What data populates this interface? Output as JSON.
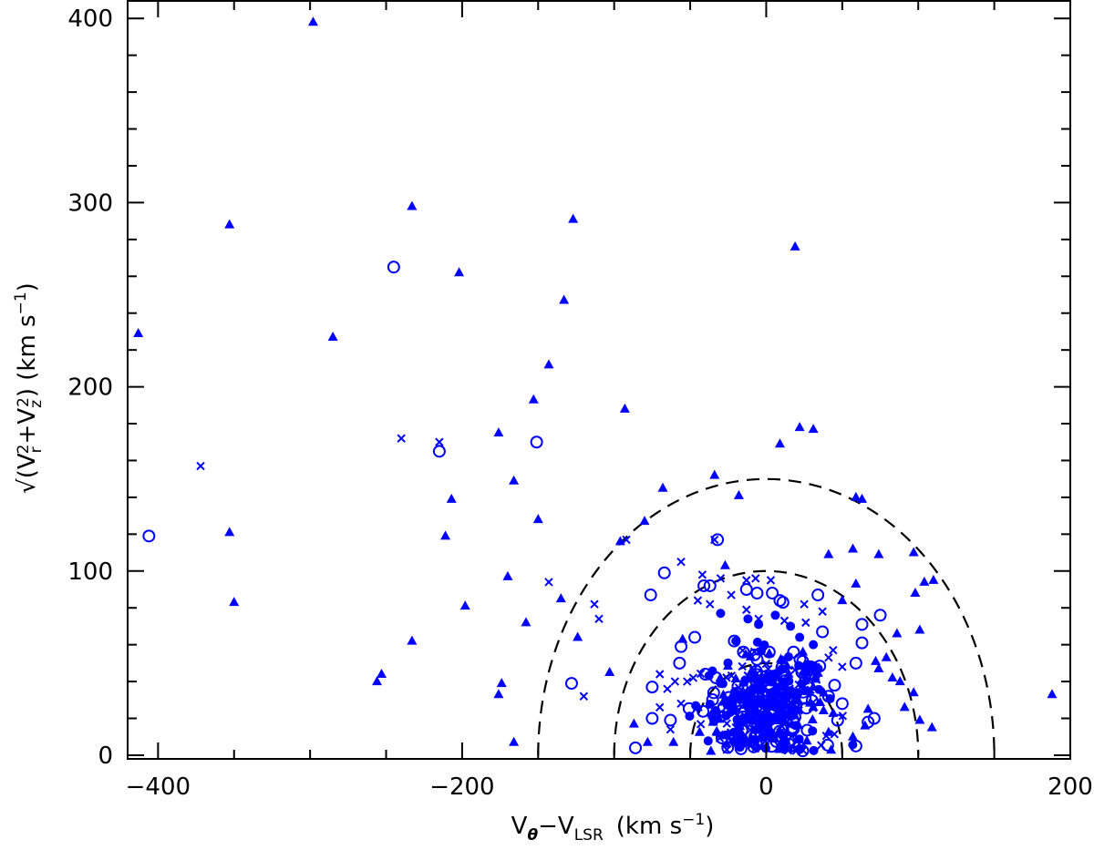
{
  "chart_data": {
    "type": "scatter",
    "title": "",
    "xlabel": {
      "main": "V",
      "sub_theta": "θ",
      "minus": "−V",
      "sub_lsr": "LSR",
      "unit": "(km s",
      "exp": "−1",
      "close": ")"
    },
    "ylabel": {
      "prefix": "√(V",
      "sub_r": "r",
      "sup2a": "2",
      "plus": "+V",
      "sub_z": "z",
      "sup2b": "2",
      "mid": ")  (km s",
      "exp": "−1",
      "close": ")"
    },
    "xlim": [
      -420,
      200
    ],
    "ylim": [
      -2,
      410
    ],
    "xticks": [
      -400,
      -200,
      0,
      200
    ],
    "yticks": [
      0,
      100,
      200,
      300,
      400
    ],
    "grid": false,
    "color": "#0000ff",
    "circle_radii_dashed": [
      50,
      100,
      150
    ],
    "series": [
      {
        "marker": "triangle",
        "points": [
          [
            -298,
            398
          ],
          [
            -413,
            229
          ],
          [
            -353,
            288
          ],
          [
            -233,
            298
          ],
          [
            -127,
            291
          ],
          [
            -285,
            227
          ],
          [
            -202,
            262
          ],
          [
            -133,
            247
          ],
          [
            19,
            276
          ],
          [
            -143,
            212
          ],
          [
            -153,
            193
          ],
          [
            -93,
            188
          ],
          [
            -176,
            175
          ],
          [
            -207,
            139
          ],
          [
            -211,
            119
          ],
          [
            -166,
            149
          ],
          [
            -150,
            128
          ],
          [
            -68,
            145
          ],
          [
            -18,
            141
          ],
          [
            -34,
            152
          ],
          [
            9,
            169
          ],
          [
            22,
            178
          ],
          [
            31,
            177
          ],
          [
            59,
            140
          ],
          [
            63,
            139
          ],
          [
            -353,
            121
          ],
          [
            -350,
            83
          ],
          [
            -170,
            97
          ],
          [
            -158,
            72
          ],
          [
            -124,
            64
          ],
          [
            -233,
            62
          ],
          [
            -198,
            81
          ],
          [
            -253,
            44
          ],
          [
            -256,
            40
          ],
          [
            -174,
            39
          ],
          [
            -176,
            33
          ],
          [
            -166,
            7
          ],
          [
            -80,
            127
          ],
          [
            -87,
            17
          ],
          [
            -78,
            7
          ],
          [
            -61,
            7
          ],
          [
            -103,
            45
          ],
          [
            -135,
            85
          ],
          [
            -96,
            116
          ],
          [
            -27,
            103
          ],
          [
            57,
            112
          ],
          [
            41,
            109
          ],
          [
            74,
            109
          ],
          [
            97,
            110
          ],
          [
            104,
            94
          ],
          [
            110,
            95
          ],
          [
            98,
            88
          ],
          [
            101,
            68
          ],
          [
            86,
            66
          ],
          [
            79,
            53
          ],
          [
            72,
            51
          ],
          [
            74,
            47
          ],
          [
            83,
            42
          ],
          [
            88,
            40
          ],
          [
            97,
            34
          ],
          [
            91,
            26
          ],
          [
            101,
            19
          ],
          [
            109,
            15
          ],
          [
            67,
            25
          ],
          [
            65,
            16
          ],
          [
            57,
            10
          ],
          [
            50,
            84
          ],
          [
            59,
            93
          ],
          [
            188,
            33
          ],
          [
            -55,
            63
          ],
          [
            -45,
            26
          ],
          [
            -35,
            18
          ]
        ]
      },
      {
        "marker": "circle-open",
        "points": [
          [
            -406,
            119
          ],
          [
            -245,
            265
          ],
          [
            -215,
            165
          ],
          [
            -151,
            170
          ],
          [
            -32,
            117
          ],
          [
            -67,
            99
          ],
          [
            -41,
            92
          ],
          [
            -37,
            92
          ],
          [
            -13,
            90
          ],
          [
            -6,
            88
          ],
          [
            4,
            88
          ],
          [
            9,
            84
          ],
          [
            11,
            83
          ],
          [
            34,
            87
          ],
          [
            63,
            71
          ],
          [
            75,
            76
          ],
          [
            63,
            61
          ],
          [
            59,
            50
          ],
          [
            37,
            67
          ],
          [
            -76,
            87
          ],
          [
            -128,
            39
          ],
          [
            -75,
            37
          ],
          [
            -56,
            59
          ],
          [
            -47,
            64
          ],
          [
            -57,
            50
          ],
          [
            -63,
            19
          ],
          [
            -75,
            20
          ],
          [
            -86,
            4
          ],
          [
            -40,
            44
          ],
          [
            -33,
            42
          ],
          [
            59,
            5
          ],
          [
            67,
            18
          ],
          [
            71,
            20
          ],
          [
            50,
            28
          ],
          [
            45,
            38
          ],
          [
            41,
            32
          ],
          [
            -15,
            56
          ],
          [
            -21,
            62
          ],
          [
            -6,
            52
          ],
          [
            2,
            56
          ],
          [
            18,
            56
          ],
          [
            24,
            51
          ],
          [
            29,
            48
          ]
        ]
      },
      {
        "marker": "cross",
        "points": [
          [
            -372,
            157
          ],
          [
            -240,
            172
          ],
          [
            -215,
            170
          ],
          [
            -143,
            94
          ],
          [
            -113,
            82
          ],
          [
            -110,
            74
          ],
          [
            -120,
            32
          ],
          [
            -92,
            117
          ],
          [
            -34,
            117
          ],
          [
            -56,
            105
          ],
          [
            -42,
            98
          ],
          [
            -30,
            96
          ],
          [
            -13,
            95
          ],
          [
            -7,
            96
          ],
          [
            3,
            95
          ],
          [
            -23,
            87
          ],
          [
            -45,
            84
          ],
          [
            -37,
            82
          ],
          [
            -70,
            44
          ],
          [
            -65,
            36
          ],
          [
            -70,
            26
          ],
          [
            -63,
            14
          ],
          [
            -52,
            40
          ],
          [
            -48,
            42
          ],
          [
            -60,
            40
          ],
          [
            -56,
            28
          ],
          [
            37,
            78
          ],
          [
            25,
            82
          ],
          [
            44,
            57
          ],
          [
            41,
            53
          ],
          [
            50,
            48
          ],
          [
            33,
            41
          ],
          [
            26,
            72
          ],
          [
            12,
            73
          ],
          [
            -5,
            74
          ],
          [
            -13,
            79
          ]
        ]
      },
      {
        "marker": "circle-filled",
        "points": [
          [
            -30,
            77
          ],
          [
            -12,
            74
          ],
          [
            -5,
            71
          ],
          [
            6,
            76
          ],
          [
            16,
            70
          ],
          [
            22,
            64
          ],
          [
            31,
            60
          ],
          [
            -20,
            62
          ]
        ]
      }
    ],
    "dense_core": {
      "x_center": 0,
      "y_center": 25,
      "x_spread": 38,
      "y_spread": 28,
      "count": 420
    }
  }
}
